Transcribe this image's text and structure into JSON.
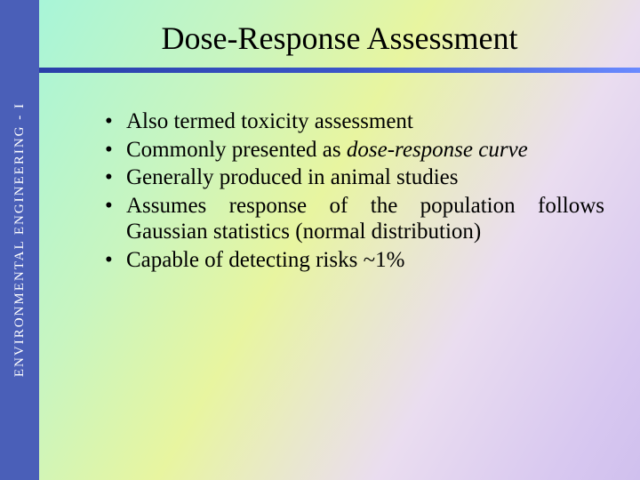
{
  "sidebar": {
    "label": "ENVIRONMENTAL ENGINEERING - I",
    "bg_color": "#4a5fb8",
    "text_color": "#ffffff"
  },
  "slide": {
    "title": "Dose-Response Assessment",
    "title_color": "#000000",
    "title_fontsize": 36,
    "underline_gradient": [
      "#2a3fa8",
      "#3a55c8",
      "#6a8aff"
    ],
    "background_gradient": [
      "#a8f5d8",
      "#c8f5c0",
      "#e8f5a0",
      "#eaddf0",
      "#d8c8f0",
      "#d0c0ee"
    ],
    "bullets": [
      {
        "plain": "Also termed toxicity assessment",
        "italic": ""
      },
      {
        "plain": "Commonly presented as ",
        "italic": "dose-response curve"
      },
      {
        "plain": "Generally produced in animal studies",
        "italic": ""
      },
      {
        "plain": "Assumes response of the population follows Gaussian statistics (normal distribution)",
        "italic": ""
      },
      {
        "plain": "Capable of detecting risks ~1%",
        "italic": ""
      }
    ],
    "bullet_fontsize": 25,
    "bullet_color": "#000000"
  }
}
